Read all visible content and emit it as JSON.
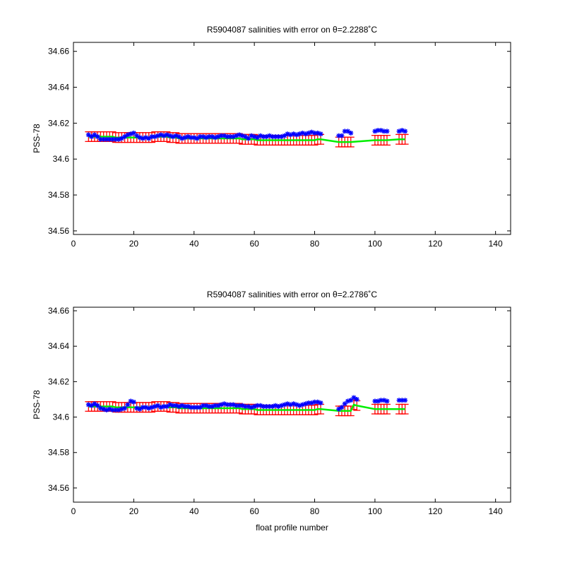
{
  "colors": {
    "background": "#ffffff",
    "axes": "#000000",
    "error_bars": "#ff0000",
    "corrected_salinity": "#00ee00",
    "float_salinity": "#0000ff"
  },
  "chart_data": [
    {
      "type": "scatter",
      "title": "R5904087 salinities with error on θ=2.2288˚C",
      "xlabel": "",
      "ylabel": "PSS-78",
      "xlim": [
        0,
        145
      ],
      "ylim": [
        34.558,
        34.665
      ],
      "x_ticks": [
        0,
        20,
        40,
        60,
        80,
        100,
        120,
        140
      ],
      "y_ticks": [
        34.56,
        34.58,
        34.6,
        34.62,
        34.64,
        34.66
      ],
      "x_tick_labels": [
        "0",
        "20",
        "40",
        "60",
        "80",
        "100",
        "120",
        "140"
      ],
      "y_tick_labels": [
        "34.56",
        "34.58",
        "34.6",
        "34.62",
        "34.64",
        "34.66"
      ],
      "grid": false,
      "legend": "none",
      "x": [
        5,
        6,
        7,
        8,
        9,
        10,
        11,
        12,
        13,
        14,
        15,
        16,
        17,
        18,
        19,
        20,
        21,
        22,
        23,
        24,
        25,
        26,
        27,
        28,
        29,
        30,
        31,
        32,
        33,
        34,
        35,
        36,
        37,
        38,
        39,
        40,
        41,
        42,
        43,
        44,
        45,
        46,
        47,
        48,
        49,
        50,
        51,
        52,
        53,
        54,
        55,
        56,
        57,
        58,
        59,
        60,
        61,
        62,
        63,
        64,
        65,
        66,
        67,
        68,
        69,
        70,
        71,
        72,
        73,
        74,
        75,
        76,
        77,
        78,
        79,
        80,
        81,
        82,
        88,
        89,
        90,
        91,
        92,
        100,
        101,
        102,
        103,
        104,
        108,
        109,
        110
      ],
      "series": [
        {
          "role": "float_salinity",
          "values": [
            34.6135,
            34.6125,
            34.6135,
            34.6125,
            34.611,
            34.611,
            34.611,
            34.611,
            34.611,
            34.611,
            34.611,
            34.6115,
            34.6125,
            34.6135,
            34.614,
            34.6145,
            34.613,
            34.612,
            34.6115,
            34.612,
            34.6115,
            34.6125,
            34.6125,
            34.613,
            34.6135,
            34.613,
            34.6135,
            34.613,
            34.6125,
            34.613,
            34.6125,
            34.6115,
            34.612,
            34.6125,
            34.612,
            34.612,
            34.6115,
            34.6125,
            34.6125,
            34.612,
            34.6125,
            34.6125,
            34.612,
            34.6125,
            34.613,
            34.613,
            34.6125,
            34.6125,
            34.6125,
            34.613,
            34.6135,
            34.613,
            34.6125,
            34.6115,
            34.613,
            34.6125,
            34.612,
            34.613,
            34.6125,
            34.6125,
            34.613,
            34.6125,
            34.6125,
            34.6125,
            34.6125,
            34.613,
            34.614,
            34.6135,
            34.614,
            34.6135,
            34.614,
            34.6145,
            34.614,
            34.6145,
            34.615,
            34.6145,
            34.6145,
            34.614,
            34.613,
            34.613,
            34.6155,
            34.6155,
            34.6145,
            34.6155,
            34.616,
            34.616,
            34.6155,
            34.6155,
            34.6155,
            34.616,
            34.6155
          ]
        },
        {
          "role": "corrected_salinity",
          "values": [
            34.6125,
            34.6125,
            34.6125,
            34.6125,
            34.6125,
            34.6125,
            34.6125,
            34.6125,
            34.6125,
            34.612,
            34.612,
            34.612,
            34.612,
            34.612,
            34.612,
            34.612,
            34.612,
            34.612,
            34.612,
            34.612,
            34.612,
            34.612,
            34.6125,
            34.6125,
            34.6125,
            34.6125,
            34.6125,
            34.612,
            34.612,
            34.612,
            34.6115,
            34.6115,
            34.6115,
            34.6115,
            34.6115,
            34.6115,
            34.6115,
            34.6115,
            34.6115,
            34.6115,
            34.6115,
            34.6115,
            34.6115,
            34.6115,
            34.6115,
            34.6115,
            34.6115,
            34.6115,
            34.6115,
            34.6115,
            34.6115,
            34.611,
            34.611,
            34.611,
            34.611,
            34.611,
            34.6105,
            34.6105,
            34.6105,
            34.6105,
            34.6105,
            34.6105,
            34.6105,
            34.6105,
            34.6105,
            34.6105,
            34.6105,
            34.6105,
            34.6105,
            34.6105,
            34.6105,
            34.6105,
            34.6105,
            34.6105,
            34.6105,
            34.6105,
            34.611,
            34.611,
            34.6095,
            34.6095,
            34.6095,
            34.6095,
            34.6095,
            34.6105,
            34.6105,
            34.6105,
            34.6105,
            34.6105,
            34.611,
            34.611,
            34.611
          ]
        }
      ],
      "error_bar_half_width": 0.0027
    },
    {
      "type": "scatter",
      "title": "R5904087 salinities with error on θ=2.2786˚C",
      "xlabel": "float profile number",
      "ylabel": "PSS-78",
      "xlim": [
        0,
        145
      ],
      "ylim": [
        34.552,
        34.662
      ],
      "x_ticks": [
        0,
        20,
        40,
        60,
        80,
        100,
        120,
        140
      ],
      "y_ticks": [
        34.56,
        34.58,
        34.6,
        34.62,
        34.64,
        34.66
      ],
      "x_tick_labels": [
        "0",
        "20",
        "40",
        "60",
        "80",
        "100",
        "120",
        "140"
      ],
      "y_tick_labels": [
        "34.56",
        "34.58",
        "34.6",
        "34.62",
        "34.64",
        "34.66"
      ],
      "grid": false,
      "legend": "none",
      "x": [
        5,
        6,
        7,
        8,
        9,
        10,
        11,
        12,
        13,
        14,
        15,
        16,
        17,
        18,
        19,
        20,
        21,
        22,
        23,
        24,
        25,
        26,
        27,
        28,
        29,
        30,
        31,
        32,
        33,
        34,
        35,
        36,
        37,
        38,
        39,
        40,
        41,
        42,
        43,
        44,
        45,
        46,
        47,
        48,
        49,
        50,
        51,
        52,
        53,
        54,
        55,
        56,
        57,
        58,
        59,
        60,
        61,
        62,
        63,
        64,
        65,
        66,
        67,
        68,
        69,
        70,
        71,
        72,
        73,
        74,
        75,
        76,
        77,
        78,
        79,
        80,
        81,
        82,
        88,
        89,
        90,
        91,
        92,
        93,
        94,
        100,
        101,
        102,
        103,
        104,
        108,
        109,
        110
      ],
      "series": [
        {
          "role": "float_salinity",
          "values": [
            34.607,
            34.6065,
            34.6075,
            34.6065,
            34.605,
            34.6045,
            34.604,
            34.6045,
            34.604,
            34.604,
            34.604,
            34.6045,
            34.605,
            34.607,
            34.609,
            34.6085,
            34.605,
            34.6045,
            34.6055,
            34.6055,
            34.605,
            34.6055,
            34.606,
            34.6065,
            34.6055,
            34.606,
            34.606,
            34.607,
            34.6065,
            34.6065,
            34.606,
            34.6065,
            34.606,
            34.606,
            34.6055,
            34.6055,
            34.6055,
            34.6055,
            34.6065,
            34.6065,
            34.606,
            34.606,
            34.6065,
            34.6065,
            34.607,
            34.6075,
            34.607,
            34.607,
            34.607,
            34.6065,
            34.6065,
            34.6065,
            34.606,
            34.606,
            34.6055,
            34.606,
            34.6065,
            34.6065,
            34.606,
            34.606,
            34.606,
            34.606,
            34.6065,
            34.606,
            34.6065,
            34.607,
            34.6075,
            34.607,
            34.6075,
            34.607,
            34.6065,
            34.607,
            34.6075,
            34.608,
            34.608,
            34.6085,
            34.6085,
            34.608,
            34.6045,
            34.6055,
            34.6075,
            34.609,
            34.6095,
            34.611,
            34.61,
            34.609,
            34.609,
            34.6095,
            34.6095,
            34.609,
            34.6095,
            34.6095,
            34.6095
          ]
        },
        {
          "role": "corrected_salinity",
          "values": [
            34.606,
            34.606,
            34.606,
            34.606,
            34.606,
            34.606,
            34.606,
            34.606,
            34.606,
            34.6055,
            34.6055,
            34.6055,
            34.6055,
            34.6055,
            34.6055,
            34.6055,
            34.6055,
            34.6055,
            34.6055,
            34.6055,
            34.6055,
            34.6055,
            34.606,
            34.606,
            34.606,
            34.606,
            34.606,
            34.6055,
            34.6055,
            34.6055,
            34.605,
            34.605,
            34.605,
            34.605,
            34.605,
            34.605,
            34.605,
            34.605,
            34.605,
            34.605,
            34.605,
            34.605,
            34.605,
            34.605,
            34.605,
            34.605,
            34.605,
            34.605,
            34.605,
            34.605,
            34.605,
            34.6045,
            34.6045,
            34.6045,
            34.6045,
            34.6045,
            34.604,
            34.604,
            34.604,
            34.604,
            34.604,
            34.604,
            34.604,
            34.604,
            34.604,
            34.604,
            34.604,
            34.604,
            34.604,
            34.604,
            34.604,
            34.604,
            34.604,
            34.604,
            34.604,
            34.604,
            34.6045,
            34.6045,
            34.6035,
            34.6035,
            34.6035,
            34.6035,
            34.6035,
            34.607,
            34.6065,
            34.6045,
            34.6045,
            34.6045,
            34.6045,
            34.6045,
            34.6045,
            34.6045,
            34.6045
          ]
        }
      ],
      "error_bar_half_width": 0.0027
    }
  ]
}
